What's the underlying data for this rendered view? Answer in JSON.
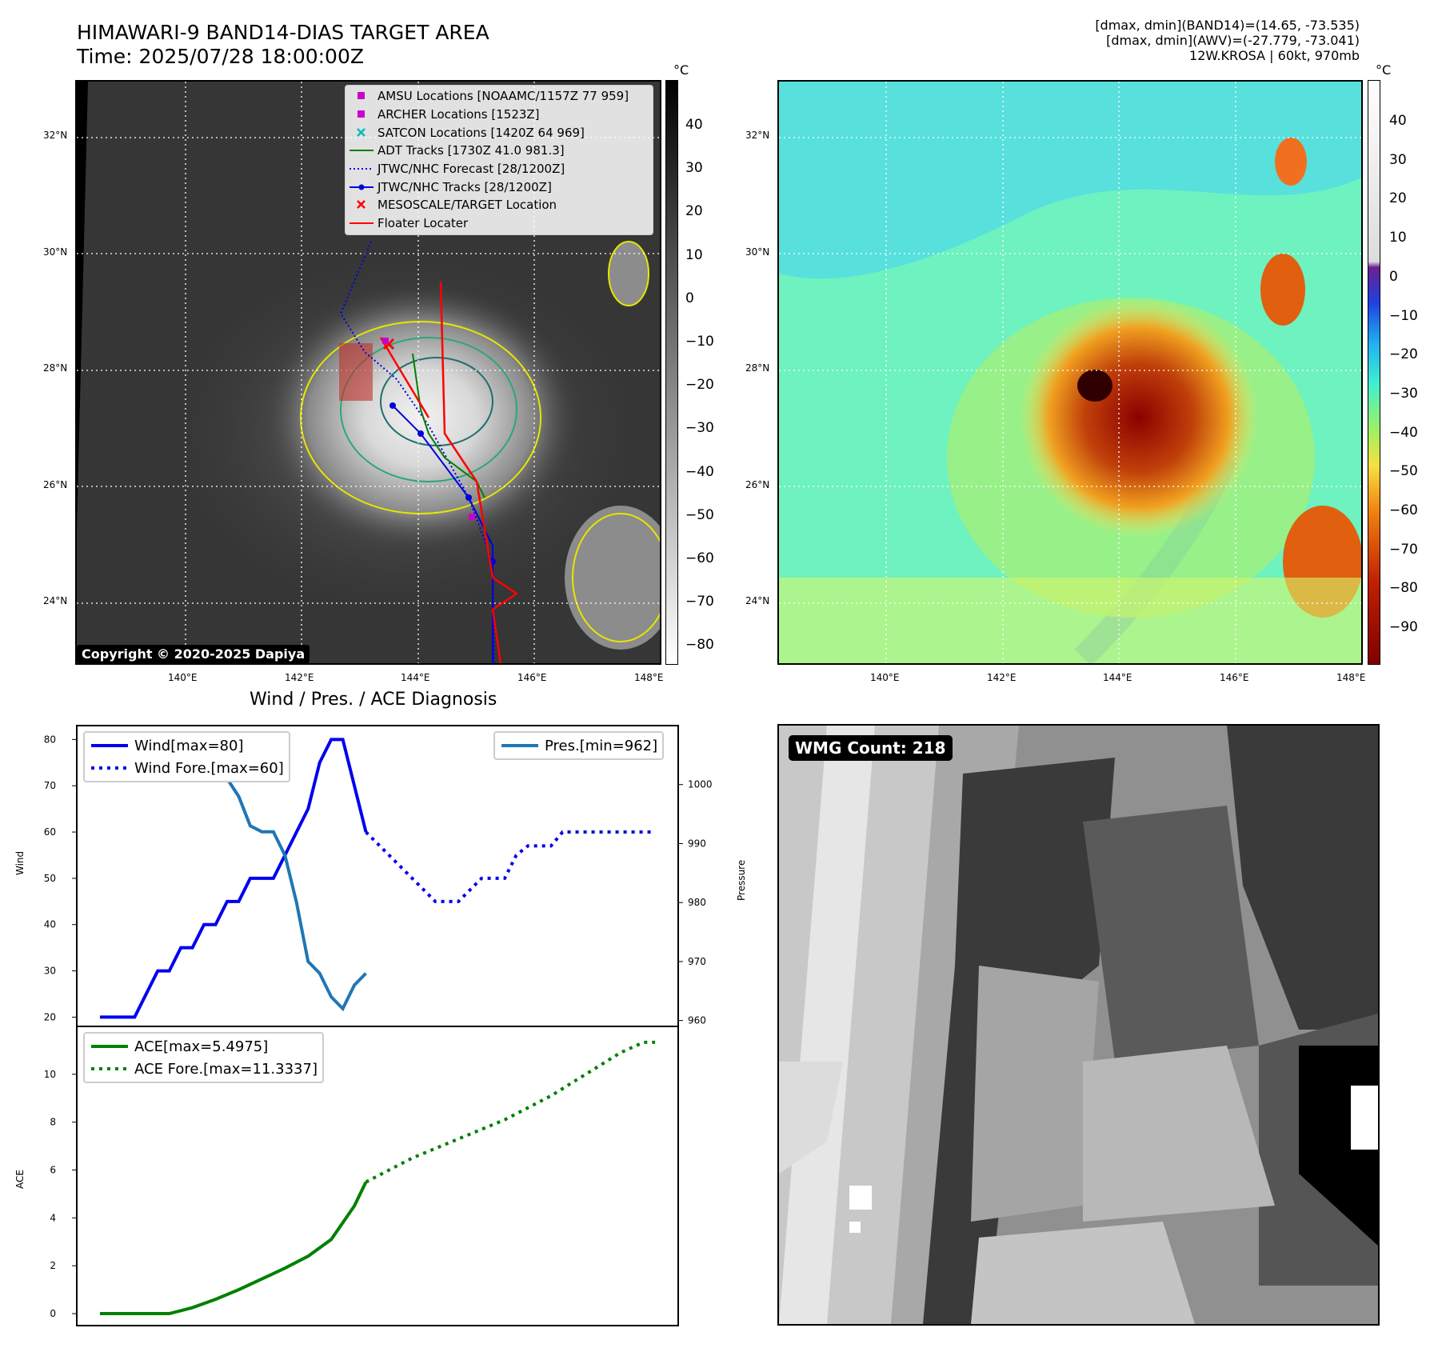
{
  "header": {
    "title_line1": "HIMAWARI-9 BAND14-DIAS TARGET AREA",
    "title_line2": "Time: 2025/07/28 18:00:00Z",
    "right_line1": "[dmax, dmin](BAND14)=(14.65, -73.535)",
    "right_line2": "[dmax, dmin](AWV)=(-27.779, -73.041)",
    "right_line3": "12W.KROSA | 60kt, 970mb"
  },
  "map_axes": {
    "lat_ticks": [
      "32°N",
      "30°N",
      "28°N",
      "26°N",
      "24°N"
    ],
    "lon_ticks": [
      "140°E",
      "142°E",
      "144°E",
      "146°E",
      "148°E"
    ]
  },
  "ir_colorbar": {
    "unit": "°C",
    "ticks": [
      "40",
      "30",
      "20",
      "10",
      "0",
      "−10",
      "−20",
      "−30",
      "−40",
      "−50",
      "−60",
      "−70",
      "−80"
    ]
  },
  "wv_colorbar": {
    "unit": "°C",
    "ticks": [
      "40",
      "30",
      "20",
      "10",
      "0",
      "−10",
      "−20",
      "−30",
      "−40",
      "−50",
      "−60",
      "−70",
      "−80",
      "−90"
    ]
  },
  "map_legend": {
    "items": [
      {
        "label": "AMSU Locations [NOAAMC/1157Z 77 959]",
        "symbol": "square",
        "color": "#cc00cc"
      },
      {
        "label": "ARCHER Locations [1523Z]",
        "symbol": "square",
        "color": "#cc00cc"
      },
      {
        "label": "SATCON Locations [1420Z 64 969]",
        "symbol": "x",
        "color": "#00bcbc"
      },
      {
        "label": "ADT Tracks [1730Z 41.0 981.3]",
        "symbol": "line",
        "color": "#008000"
      },
      {
        "label": "JTWC/NHC Forecast [28/1200Z]",
        "symbol": "dotted",
        "color": "#0000dd"
      },
      {
        "label": "JTWC/NHC Tracks [28/1200Z]",
        "symbol": "line-dot",
        "color": "#0000dd"
      },
      {
        "label": "MESOSCALE/TARGET Location",
        "symbol": "x",
        "color": "#ff0000"
      },
      {
        "label": "Floater Locater",
        "symbol": "line",
        "color": "#ff0000"
      }
    ]
  },
  "copyright": "Copyright © 2020-2025 Dapiya",
  "wmg": "WMG Count: 218",
  "diag_title": "Wind / Pres. / ACE Diagnosis",
  "chart_data": [
    {
      "type": "line",
      "title": "Wind / Pres. / ACE Diagnosis",
      "ylabel": "Wind",
      "y2label": "Pressure",
      "ylim": [
        18,
        83
      ],
      "y2lim": [
        959,
        1010
      ],
      "yticks": [
        20,
        30,
        40,
        50,
        60,
        70,
        80
      ],
      "y2ticks": [
        960,
        970,
        980,
        990,
        1000
      ],
      "series": [
        {
          "name": "Wind[max=80]",
          "axis": "left",
          "style": "solid",
          "color": "#0000ee",
          "x": [
            0,
            1,
            2,
            3,
            4,
            5,
            6,
            7,
            8,
            9,
            10,
            11,
            12,
            13,
            14,
            15,
            16,
            17,
            18,
            19,
            20,
            21,
            22,
            23
          ],
          "y": [
            20,
            20,
            20,
            20,
            25,
            30,
            30,
            35,
            35,
            40,
            40,
            45,
            45,
            50,
            50,
            50,
            55,
            60,
            65,
            75,
            80,
            80,
            70,
            60
          ]
        },
        {
          "name": "Wind Fore.[max=60]",
          "axis": "left",
          "style": "dotted",
          "color": "#0000ee",
          "x": [
            23,
            25,
            27,
            29,
            31,
            33,
            34,
            35,
            36,
            37,
            38,
            39,
            40,
            41,
            42,
            43,
            44,
            45,
            46,
            47,
            48
          ],
          "y": [
            60,
            55,
            50,
            45,
            45,
            50,
            50,
            50,
            55,
            57,
            57,
            57,
            60,
            60,
            60,
            60,
            60,
            60,
            60,
            60,
            60
          ]
        },
        {
          "name": "Pres.[min=962]",
          "axis": "right",
          "style": "solid",
          "color": "#1f77b4",
          "x": [
            0,
            1,
            2,
            3,
            4,
            5,
            6,
            7,
            8,
            9,
            10,
            11,
            12,
            13,
            14,
            15,
            16,
            17,
            18,
            19,
            20,
            21,
            22,
            23
          ],
          "y": [
            1008,
            1008,
            1008,
            1006,
            1006,
            1005,
            1005,
            1003,
            1003,
            1001,
            1001,
            1001,
            998,
            993,
            992,
            992,
            988,
            980,
            970,
            968,
            964,
            962,
            966,
            968
          ]
        }
      ]
    },
    {
      "type": "line",
      "ylabel": "ACE",
      "ylim": [
        -0.5,
        12
      ],
      "yticks": [
        0,
        2,
        4,
        6,
        8,
        10
      ],
      "series": [
        {
          "name": "ACE[max=5.4975]",
          "style": "solid",
          "color": "#008000",
          "x": [
            0,
            2,
            4,
            6,
            8,
            10,
            12,
            14,
            16,
            18,
            20,
            22,
            23
          ],
          "y": [
            0,
            0,
            0,
            0,
            0.25,
            0.6,
            1.0,
            1.45,
            1.9,
            2.4,
            3.1,
            4.5,
            5.4975
          ]
        },
        {
          "name": "ACE Fore.[max=11.3337]",
          "style": "dotted",
          "color": "#008000",
          "x": [
            23,
            25,
            27,
            29,
            31,
            33,
            35,
            37,
            39,
            41,
            43,
            45,
            47,
            48
          ],
          "y": [
            5.4975,
            6.0,
            6.5,
            6.9,
            7.3,
            7.7,
            8.1,
            8.6,
            9.1,
            9.7,
            10.3,
            10.9,
            11.3337,
            11.3337
          ]
        }
      ]
    }
  ]
}
